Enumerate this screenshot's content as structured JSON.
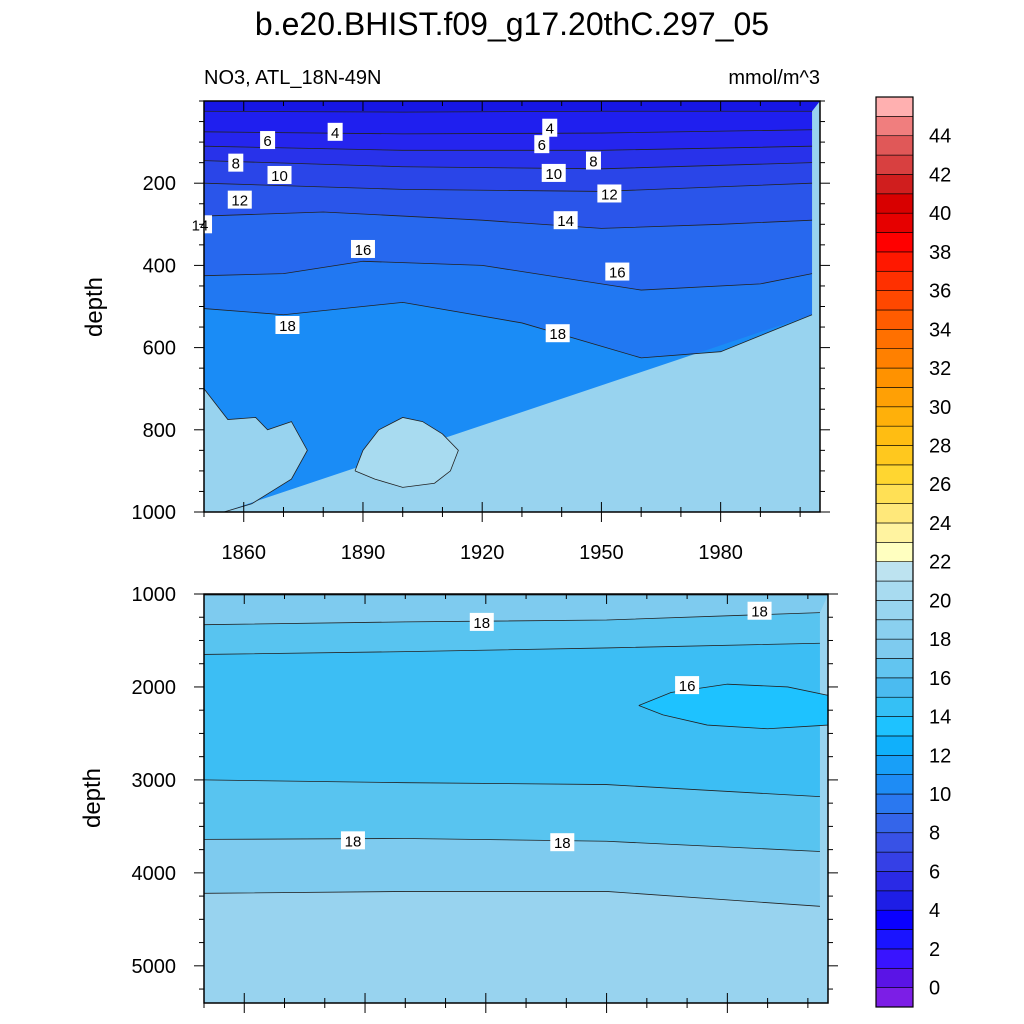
{
  "figure": {
    "title": "b.e20.BHIST.f09_g17.20thC.297_05",
    "left_string": "NO3, ATL_18N-49N",
    "right_string": "mmol/m^3"
  },
  "chart_data": [
    {
      "type": "contour",
      "panel": "upper",
      "title": "b.e20.BHIST.f09_g17.20thC.297_05",
      "subtitle_left": "NO3, ATL_18N-49N",
      "subtitle_right": "mmol/m^3",
      "xlabel": "",
      "ylabel": "depth",
      "xlim": [
        1850,
        2005
      ],
      "ylim": [
        1000,
        0
      ],
      "x_ticks": [
        1860,
        1890,
        1920,
        1950,
        1980
      ],
      "y_ticks": [
        200,
        400,
        600,
        800,
        1000
      ],
      "contour_labels": [
        {
          "value": 4,
          "x": 1883,
          "depth": 75
        },
        {
          "value": 4,
          "x": 1937,
          "depth": 65
        },
        {
          "value": 6,
          "x": 1866,
          "depth": 95
        },
        {
          "value": 6,
          "x": 1935,
          "depth": 105
        },
        {
          "value": 8,
          "x": 1858,
          "depth": 150
        },
        {
          "value": 8,
          "x": 1948,
          "depth": 145
        },
        {
          "value": 10,
          "x": 1869,
          "depth": 180
        },
        {
          "value": 10,
          "x": 1938,
          "depth": 175
        },
        {
          "value": 12,
          "x": 1859,
          "depth": 240
        },
        {
          "value": 12,
          "x": 1952,
          "depth": 225
        },
        {
          "value": 14,
          "x": 1849,
          "depth": 300
        },
        {
          "value": 14,
          "x": 1941,
          "depth": 290
        },
        {
          "value": 16,
          "x": 1890,
          "depth": 360
        },
        {
          "value": 16,
          "x": 1954,
          "depth": 415
        },
        {
          "value": 18,
          "x": 1871,
          "depth": 545
        },
        {
          "value": 18,
          "x": 1939,
          "depth": 565
        }
      ],
      "contour_lines": [
        {
          "value": 4,
          "points": [
            [
              1850,
              25
            ],
            [
              1900,
              27
            ],
            [
              1950,
              25
            ],
            [
              2003,
              25
            ]
          ]
        },
        {
          "value": 6,
          "points": [
            [
              1850,
              75
            ],
            [
              1900,
              80
            ],
            [
              1950,
              78
            ],
            [
              2003,
              70
            ]
          ]
        },
        {
          "value": 8,
          "points": [
            [
              1850,
              110
            ],
            [
              1900,
              120
            ],
            [
              1950,
              120
            ],
            [
              2003,
              110
            ]
          ]
        },
        {
          "value": 10,
          "points": [
            [
              1850,
              145
            ],
            [
              1900,
              160
            ],
            [
              1950,
              165
            ],
            [
              2003,
              150
            ]
          ]
        },
        {
          "value": 12,
          "points": [
            [
              1850,
              200
            ],
            [
              1900,
              215
            ],
            [
              1950,
              220
            ],
            [
              2003,
              200
            ]
          ]
        },
        {
          "value": 14,
          "points": [
            [
              1850,
              280
            ],
            [
              1880,
              270
            ],
            [
              1920,
              290
            ],
            [
              1950,
              310
            ],
            [
              1980,
              300
            ],
            [
              2003,
              290
            ]
          ]
        },
        {
          "value": 16,
          "points": [
            [
              1850,
              425
            ],
            [
              1870,
              420
            ],
            [
              1890,
              390
            ],
            [
              1920,
              400
            ],
            [
              1960,
              460
            ],
            [
              1990,
              445
            ],
            [
              2003,
              420
            ]
          ]
        },
        {
          "value": 18,
          "points": [
            [
              1850,
              505
            ],
            [
              1870,
              520
            ],
            [
              1900,
              490
            ],
            [
              1930,
              540
            ],
            [
              1960,
              625
            ],
            [
              1980,
              610
            ],
            [
              2003,
              520
            ]
          ]
        },
        {
          "value": 20,
          "points": [
            [
              1850,
              700
            ],
            [
              1856,
              775
            ],
            [
              1863,
              770
            ],
            [
              1866,
              800
            ],
            [
              1872,
              780
            ],
            [
              1876,
              850
            ],
            [
              1872,
              920
            ],
            [
              1867,
              950
            ],
            [
              1862,
              980
            ],
            [
              1855,
              1000
            ]
          ]
        },
        {
          "value": 20,
          "points": [
            [
              1888,
              900
            ],
            [
              1890,
              850
            ],
            [
              1894,
              800
            ],
            [
              1900,
              770
            ],
            [
              1905,
              780
            ],
            [
              1910,
              810
            ],
            [
              1914,
              850
            ],
            [
              1912,
              900
            ],
            [
              1908,
              930
            ],
            [
              1900,
              940
            ],
            [
              1893,
              920
            ],
            [
              1888,
              900
            ]
          ]
        }
      ]
    },
    {
      "type": "contour",
      "panel": "lower",
      "xlabel": "",
      "ylabel": "depth",
      "xlim": [
        1850,
        2005
      ],
      "ylim": [
        5400,
        1000
      ],
      "x_ticks": [
        1860,
        1890,
        1920,
        1950,
        1980
      ],
      "y_ticks": [
        1000,
        2000,
        3000,
        4000,
        5000
      ],
      "contour_labels": [
        {
          "value": 18,
          "x": 1919,
          "depth": 1300
        },
        {
          "value": 18,
          "x": 1988,
          "depth": 1180
        },
        {
          "value": 16,
          "x": 1970,
          "depth": 1980
        },
        {
          "value": 18,
          "x": 1887,
          "depth": 3650
        },
        {
          "value": 18,
          "x": 1939,
          "depth": 3670
        }
      ],
      "contour_lines": [
        {
          "value": 20,
          "points": [
            [
              1850,
              1010
            ],
            [
              2005,
              1010
            ]
          ]
        },
        {
          "value": 18,
          "points": [
            [
              1850,
              1330
            ],
            [
              1900,
              1300
            ],
            [
              1950,
              1280
            ],
            [
              2003,
              1200
            ]
          ]
        },
        {
          "value": 16,
          "points": [
            [
              1850,
              1650
            ],
            [
              1900,
              1620
            ],
            [
              1950,
              1580
            ],
            [
              2003,
              1530
            ]
          ]
        },
        {
          "value": 16,
          "points": [
            [
              1958,
              2200
            ],
            [
              1966,
              2060
            ],
            [
              1980,
              1970
            ],
            [
              1995,
              2000
            ],
            [
              2005,
              2090
            ],
            [
              2005,
              2410
            ],
            [
              1990,
              2450
            ],
            [
              1975,
              2410
            ],
            [
              1964,
              2300
            ],
            [
              1958,
              2200
            ]
          ]
        },
        {
          "value": 16,
          "points": [
            [
              1850,
              3000
            ],
            [
              1900,
              3030
            ],
            [
              1950,
              3050
            ],
            [
              2003,
              3180
            ]
          ]
        },
        {
          "value": 18,
          "points": [
            [
              1850,
              3640
            ],
            [
              1900,
              3630
            ],
            [
              1950,
              3660
            ],
            [
              2003,
              3770
            ]
          ]
        },
        {
          "value": 20,
          "points": [
            [
              1850,
              4220
            ],
            [
              1900,
              4200
            ],
            [
              1950,
              4200
            ],
            [
              2003,
              4360
            ]
          ]
        }
      ]
    }
  ],
  "colorbar": {
    "labels": [
      "0",
      "2",
      "4",
      "6",
      "8",
      "10",
      "12",
      "14",
      "16",
      "18",
      "20",
      "22",
      "24",
      "26",
      "28",
      "30",
      "32",
      "34",
      "36",
      "38",
      "40",
      "42",
      "44"
    ],
    "colors": [
      "#7c1ee6",
      "#5a14e6",
      "#3914ff",
      "#1a14ff",
      "#0a00ff",
      "#1e1ee6",
      "#2a2ae6",
      "#3540e6",
      "#3852e6",
      "#3465ea",
      "#2a78f0",
      "#1e8cf5",
      "#189ff8",
      "#10b0fb",
      "#1ec2ff",
      "#35c0f5",
      "#4bbbf0",
      "#62c5f0",
      "#7ecbef",
      "#8ad0ef",
      "#98d5ef",
      "#a8dbf0",
      "#bde3f0",
      "#ffffc0",
      "#fff3a0",
      "#ffe87a",
      "#ffe055",
      "#ffd630",
      "#ffc81e",
      "#ffbd12",
      "#ffb00a",
      "#ffa005",
      "#ff9200",
      "#ff8000",
      "#ff7000",
      "#ff5c00",
      "#ff4800",
      "#ff3000",
      "#ff1800",
      "#ff0000",
      "#e60000",
      "#d80000",
      "#d01e1e",
      "#d84040",
      "#e05858",
      "#f07e7e",
      "#ffb0b0"
    ]
  },
  "palette": {
    "upper_bands": [
      "#1616e6",
      "#1f1fef",
      "#2525ee",
      "#2832ea",
      "#2a45e8",
      "#2a55ea",
      "#2768ee",
      "#2178f2",
      "#1a8cf6",
      "#15a2fa",
      "#18b4fc",
      "#3cbef4",
      "#58c4f0",
      "#7ecbef",
      "#98d3ef"
    ],
    "lower_bands": [
      "#98d3ef",
      "#7ecbef",
      "#58c4f0",
      "#3cbef4",
      "#58c4f0",
      "#7ecbef",
      "#98d3ef"
    ],
    "blob_16": "#1ec2ff",
    "blob_20": "#a8dbf0"
  }
}
